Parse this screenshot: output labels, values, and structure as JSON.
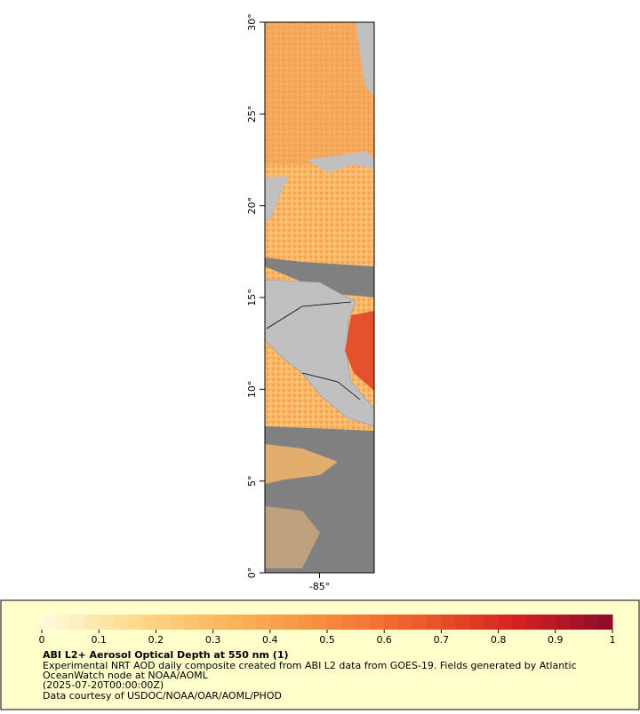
{
  "map": {
    "latlim": [
      0,
      30
    ],
    "lonlim": [
      -88,
      -82
    ],
    "lat_ticks": [
      {
        "value": 0,
        "label": "0°"
      },
      {
        "value": 5,
        "label": "5°"
      },
      {
        "value": 10,
        "label": "10°"
      },
      {
        "value": 15,
        "label": "15°"
      },
      {
        "value": 20,
        "label": "20°"
      },
      {
        "value": 25,
        "label": "25°"
      },
      {
        "value": 30,
        "label": "30°"
      }
    ],
    "lon_ticks": [
      {
        "value": -85,
        "label": "-85°"
      }
    ]
  },
  "legend": {
    "range": [
      0,
      1
    ],
    "ticks": [
      0,
      0.1,
      0.2,
      0.3,
      0.4,
      0.5,
      0.6,
      0.7,
      0.8,
      0.9,
      1
    ],
    "colors": [
      "#fffbe0",
      "#fed98a",
      "#fcb35a",
      "#f88a3e",
      "#ec5a2a",
      "#d42020",
      "#8c0a2a"
    ],
    "title": "ABI L2+ Aerosol Optical Depth at 550 nm (1)",
    "lines": [
      "Experimental NRT AOD daily composite created from ABI L2 data from GOES-19. Fields generated by Atlantic",
      "OceanWatch node at NOAA/AOML",
      "(2025-07-20T00:00:00Z)",
      "Data courtesy of USDOC/NOAA/OAR/AOML/PHOD"
    ]
  }
}
